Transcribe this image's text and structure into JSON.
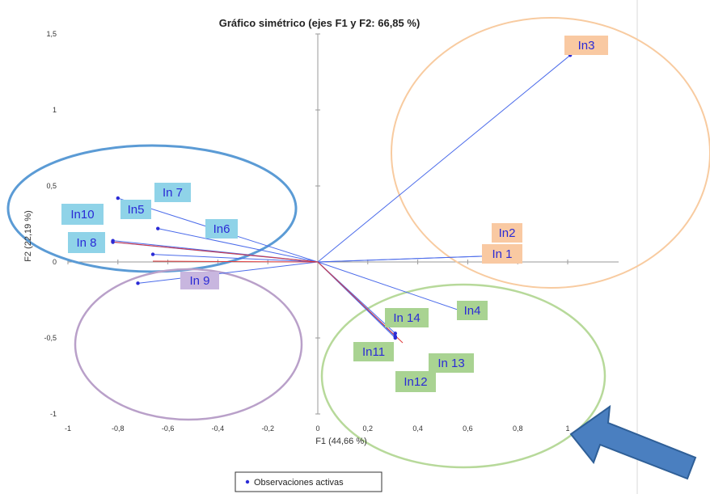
{
  "chart_data": {
    "type": "scatter",
    "title": "Gráfico simétrico (ejes F1 y F2: 66,85 %)",
    "xlabel": "F1 (44,66 %)",
    "ylabel": "F2 (22,19 %)",
    "xlim": [
      -1,
      1.2
    ],
    "ylim": [
      -1,
      1.5
    ],
    "x_ticks": [
      -1,
      -0.8,
      -0.6,
      -0.4,
      -0.2,
      0,
      0.2,
      0.4,
      0.6,
      0.8,
      1
    ],
    "x_tick_labels": [
      "-1",
      "-0,8",
      "-0,6",
      "-0,4",
      "-0,2",
      "0",
      "0,2",
      "0,4",
      "0,6",
      "0,8",
      "1"
    ],
    "y_ticks": [
      -1,
      -0.5,
      0,
      0.5,
      1,
      1.5
    ],
    "y_tick_labels": [
      "-1",
      "-0,5",
      "0",
      "0,5",
      "1",
      "1,5"
    ],
    "grid": false,
    "legend": {
      "position": "bottom-center",
      "entries": [
        "Observaciones activas"
      ]
    },
    "points": [
      {
        "label": "In3",
        "x": 1.01,
        "y": 1.36,
        "group": "orange"
      },
      {
        "label": "In2",
        "x": 0.7,
        "y": 0.04,
        "group": "orange"
      },
      {
        "label": "In 1",
        "x": 0.7,
        "y": 0.04,
        "group": "orange"
      },
      {
        "label": "In4",
        "x": 0.57,
        "y": -0.32,
        "group": "green"
      },
      {
        "label": "In 14",
        "x": 0.31,
        "y": -0.47,
        "group": "green"
      },
      {
        "label": "In11",
        "x": 0.31,
        "y": -0.5,
        "group": "green"
      },
      {
        "label": "In 13",
        "x": 0.31,
        "y": -0.49,
        "group": "green"
      },
      {
        "label": "In12",
        "x": 0.31,
        "y": -0.49,
        "group": "green"
      },
      {
        "label": "In 7",
        "x": -0.64,
        "y": 0.22,
        "group": "blue"
      },
      {
        "label": "In5",
        "x": -0.8,
        "y": 0.42,
        "group": "blue"
      },
      {
        "label": "In6",
        "x": -0.66,
        "y": 0.05,
        "group": "blue"
      },
      {
        "label": "In10",
        "x": -0.82,
        "y": 0.14,
        "group": "blue"
      },
      {
        "label": "In 8",
        "x": -0.82,
        "y": 0.13,
        "group": "blue"
      },
      {
        "label": "In 9",
        "x": -0.72,
        "y": -0.14,
        "group": "purple"
      }
    ]
  },
  "colors": {
    "point": "#2b2bd6",
    "vector": "#4b6bea",
    "vector_red": "#e03a3a",
    "blue_ellipse": "#5b9bd5",
    "orange_ellipse": "#f8cba0",
    "green_ellipse": "#b7d99a",
    "purple_ellipse": "#b9a0c9",
    "label_blue_bg": "#8fd3e8",
    "label_orange_bg": "#f9c9a2",
    "label_green_bg": "#a9d392",
    "label_purple_bg": "#c8b6df",
    "arrow": "#4a7fc0"
  }
}
